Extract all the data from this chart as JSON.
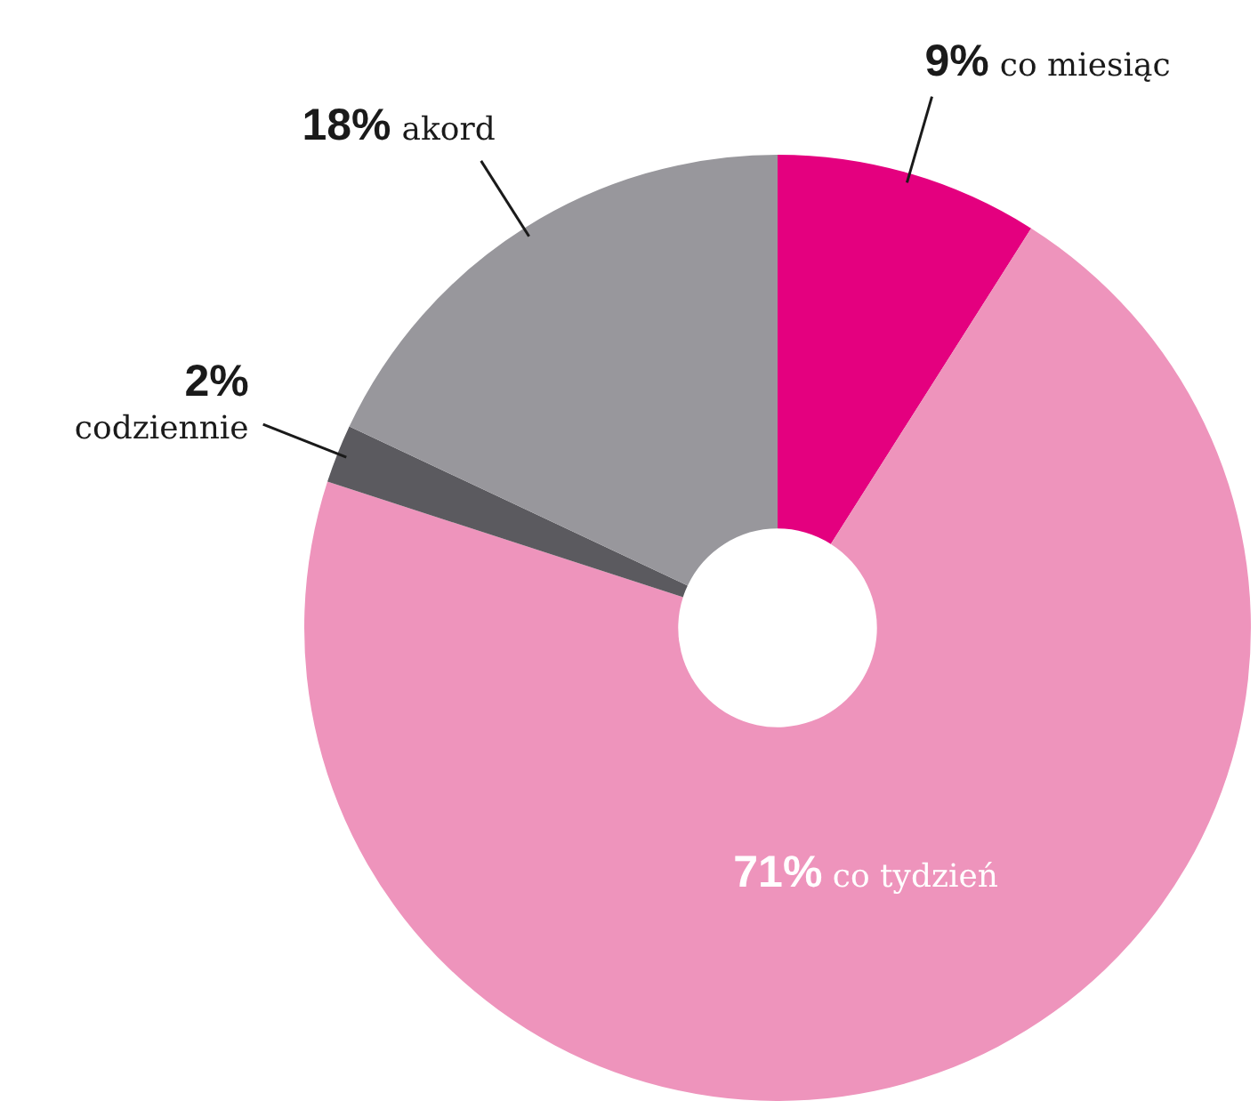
{
  "chart_data": {
    "type": "donut",
    "categories": [
      "co miesiąc",
      "co tydzień",
      "codziennie",
      "akord"
    ],
    "values": [
      9,
      71,
      2,
      18
    ],
    "colors": [
      "#e4007f",
      "#ee94bc",
      "#5b5a5f",
      "#98979c"
    ],
    "value_labels": [
      "9%",
      "71%",
      "2%",
      "18%"
    ],
    "legend": false
  }
}
